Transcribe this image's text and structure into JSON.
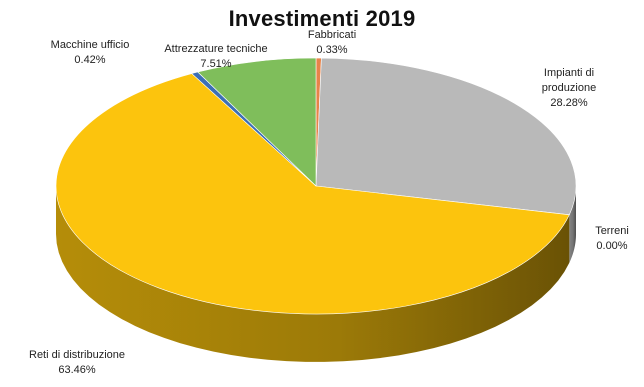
{
  "chart_data": {
    "type": "pie",
    "title": "Investimenti 2019",
    "three_d": true,
    "legend": "none",
    "slices": [
      {
        "label": "Fabbricati",
        "value": 0.33,
        "value_text": "0.33%",
        "color": "#E8834A"
      },
      {
        "label": "Impianti di produzione",
        "value": 28.28,
        "value_text": "28.28%",
        "color": "#B9B9B9"
      },
      {
        "label": "Terreni",
        "value": 0.0,
        "value_text": "0.00%",
        "color": "#F6C34B"
      },
      {
        "label": "Reti di distribuzione",
        "value": 63.46,
        "value_text": "63.46%",
        "color": "#FCC40D"
      },
      {
        "label": "Macchine ufficio",
        "value": 0.42,
        "value_text": "0.42%",
        "color": "#3D6FB5"
      },
      {
        "label": "Attrezzature tecniche",
        "value": 7.51,
        "value_text": "7.51%",
        "color": "#7FBE5B"
      }
    ]
  }
}
